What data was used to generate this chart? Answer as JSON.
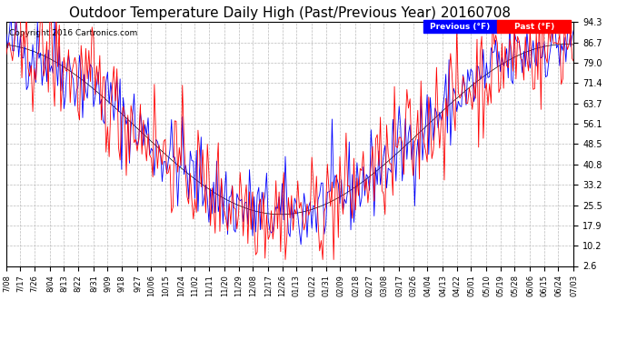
{
  "title": "Outdoor Temperature Daily High (Past/Previous Year) 20160708",
  "copyright": "Copyright 2016 Cartronics.com",
  "ylabel_right_ticks": [
    94.3,
    86.7,
    79.0,
    71.4,
    63.7,
    56.1,
    48.5,
    40.8,
    33.2,
    25.5,
    17.9,
    10.2,
    2.6
  ],
  "ymin": 2.6,
  "ymax": 94.3,
  "legend_previous_label": "Previous (°F)",
  "legend_past_label": "Past (°F)",
  "legend_previous_color": "#0000ff",
  "legend_past_color": "#ff0000",
  "background_color": "#ffffff",
  "plot_bg_color": "#ffffff",
  "grid_color": "#bbbbbb",
  "title_fontsize": 11,
  "tick_fontsize": 7,
  "copyright_fontsize": 6.5,
  "x_tick_labels": [
    "7/08",
    "7/17",
    "7/26",
    "8/04",
    "8/13",
    "8/22",
    "8/31",
    "9/09",
    "9/18",
    "9/27",
    "10/06",
    "10/15",
    "10/24",
    "11/02",
    "11/11",
    "11/20",
    "11/29",
    "12/08",
    "12/17",
    "12/26",
    "01/13",
    "01/22",
    "01/31",
    "02/09",
    "02/18",
    "02/27",
    "03/08",
    "03/17",
    "03/26",
    "04/04",
    "04/13",
    "04/22",
    "05/01",
    "05/10",
    "05/19",
    "05/28",
    "06/06",
    "06/15",
    "06/24",
    "07/03"
  ],
  "n_points": 365
}
